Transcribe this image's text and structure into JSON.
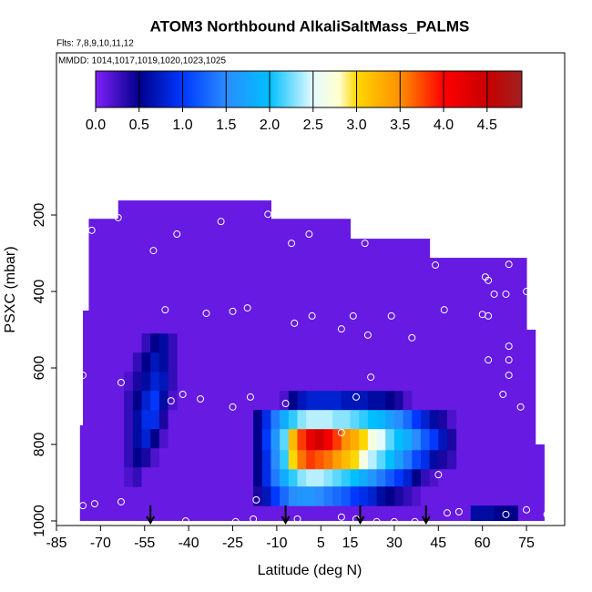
{
  "chart_data": {
    "type": "heatmap",
    "title": "ATOM3 Northbound AlkaliSaltMass_PALMS",
    "subtitle": "Flts: 7,8,9,10,11,12",
    "annotation": "MMDD: 1014,1017,1019,1020,1023,1025",
    "x_label": "Latitude (deg N)",
    "y_label": "PSXC (mbar)",
    "xlim": [
      -85,
      88
    ],
    "xticks": [
      -85,
      -70,
      -55,
      -40,
      -25,
      -10,
      5,
      15,
      30,
      45,
      60,
      75
    ],
    "ylim": [
      1012,
      -224
    ],
    "yticks": [
      200,
      400,
      600,
      800,
      1000
    ],
    "colorscale": [
      [
        0,
        "#8020f8"
      ],
      [
        0.5,
        "#00008b"
      ],
      [
        1.0,
        "#0038ff"
      ],
      [
        1.5,
        "#2a8cff"
      ],
      [
        2.0,
        "#00bfff"
      ],
      [
        2.5,
        "#e6fbff"
      ],
      [
        2.8,
        "#ffffd0"
      ],
      [
        3.0,
        "#ffd700"
      ],
      [
        3.5,
        "#ff9000"
      ],
      [
        4.0,
        "#ff0000"
      ],
      [
        4.5,
        "#c80000"
      ],
      [
        4.9,
        "#a02020"
      ]
    ],
    "colorbar": {
      "range": [
        0,
        4.9
      ],
      "ticks": [
        {
          "value": 0,
          "label": "0.0"
        },
        0.5,
        {
          "value": 1,
          "label": "1.0"
        },
        1.5,
        {
          "value": 2,
          "label": "2.0"
        },
        2.5,
        {
          "value": 3,
          "label": "3.0"
        },
        3.5,
        {
          "value": 4,
          "label": "4.0"
        },
        4.5
      ]
    },
    "blocks": [
      {
        "lat": [
          -77,
          -76
        ],
        "p": [
          750,
          1000
        ],
        "value": 0.1
      },
      {
        "lat": [
          -76,
          -74
        ],
        "p": [
          450,
          1000
        ],
        "value": 0.1
      },
      {
        "lat": [
          -74,
          -64
        ],
        "p": [
          210,
          1000
        ],
        "value": 0.1
      },
      {
        "lat": [
          -64,
          -12
        ],
        "p": [
          162,
          1000
        ],
        "value": 0.1
      },
      {
        "lat": [
          -12,
          15
        ],
        "p": [
          210,
          1000
        ],
        "value": 0.1
      },
      {
        "lat": [
          15,
          42
        ],
        "p": [
          262,
          1000
        ],
        "value": 0.1
      },
      {
        "lat": [
          42,
          75
        ],
        "p": [
          312,
          1000
        ],
        "value": 0.1
      },
      {
        "lat": [
          75,
          78
        ],
        "p": [
          500,
          1000
        ],
        "value": 0.1
      },
      {
        "lat": [
          78,
          81
        ],
        "p": [
          800,
          1000
        ],
        "value": 0.1
      },
      {
        "lat": [
          56,
          64
        ],
        "p": [
          960,
          1000
        ],
        "value": 0.6
      },
      {
        "lat": [
          64,
          72
        ],
        "p": [
          960,
          1000
        ],
        "value": 0.5
      }
    ],
    "grids": [
      {
        "lat_edges": [
          -62,
          -59,
          -56,
          -53,
          -50,
          -47,
          -44
        ],
        "p_edges": [
          510,
          560,
          610,
          660,
          710,
          760,
          810,
          860,
          910
        ],
        "values": [
          [
            0.1,
            0.1,
            0.3,
            0.5,
            0.6,
            0.3
          ],
          [
            0.1,
            0.3,
            0.5,
            0.7,
            0.6,
            0.3
          ],
          [
            0.2,
            0.4,
            0.6,
            0.8,
            0.7,
            0.3
          ],
          [
            0.3,
            0.5,
            0.8,
            1.0,
            0.6,
            0.2
          ],
          [
            0.3,
            0.6,
            0.9,
            0.9,
            0.4,
            0.1
          ],
          [
            0.3,
            0.6,
            0.8,
            0.5,
            0.2,
            0.1
          ],
          [
            0.3,
            0.5,
            0.4,
            0.2,
            0.1,
            0.1
          ],
          [
            0.2,
            0.3,
            0.1,
            0.1,
            0.1,
            0.1
          ]
        ]
      },
      {
        "lat_edges": [
          -18,
          -15,
          -12,
          -9,
          -6,
          -3,
          0,
          3,
          6,
          9,
          12,
          15,
          18,
          21,
          24,
          27,
          30,
          33,
          36,
          39,
          42,
          45,
          48,
          51
        ],
        "p_edges": [
          660,
          710,
          760,
          815,
          865,
          910,
          960
        ],
        "values": [
          [
            0.1,
            0.1,
            0.1,
            0.2,
            0.5,
            0.7,
            0.8,
            0.8,
            0.8,
            0.8,
            0.7,
            0.7,
            0.7,
            0.6,
            0.6,
            0.5,
            0.4,
            0.2,
            0.1,
            0.1,
            0.1,
            0.1,
            0.1
          ],
          [
            0.5,
            0.9,
            1.4,
            1.8,
            2.1,
            2.3,
            2.4,
            2.4,
            2.4,
            2.3,
            2.3,
            2.2,
            2.1,
            2.0,
            1.9,
            1.7,
            1.5,
            1.3,
            1.0,
            0.8,
            0.6,
            0.4,
            0.2
          ],
          [
            0.5,
            1.0,
            1.6,
            2.2,
            3.2,
            3.8,
            4.2,
            4.4,
            4.1,
            3.8,
            3.5,
            3.3,
            3.0,
            2.7,
            2.5,
            2.2,
            2.0,
            1.8,
            1.5,
            1.2,
            1.0,
            0.7,
            0.4
          ],
          [
            0.5,
            0.9,
            1.5,
            2.1,
            3.0,
            3.6,
            3.8,
            3.7,
            3.6,
            3.4,
            3.2,
            3.0,
            2.7,
            2.4,
            2.2,
            2.0,
            1.7,
            1.4,
            1.1,
            0.9,
            0.6,
            0.4,
            0.3
          ],
          [
            0.5,
            0.9,
            1.4,
            1.8,
            2.1,
            2.3,
            2.4,
            2.4,
            2.3,
            2.2,
            2.1,
            2.0,
            1.8,
            1.6,
            1.4,
            1.2,
            1.0,
            0.8,
            0.5,
            0.3,
            0.2,
            0.1,
            0.1
          ],
          [
            0.4,
            0.7,
            1.0,
            1.3,
            1.5,
            1.6,
            1.6,
            1.5,
            1.4,
            1.3,
            1.2,
            1.0,
            0.9,
            0.8,
            0.6,
            0.5,
            0.4,
            0.3,
            0.2,
            0.1,
            0.1,
            0.1,
            0.1
          ]
        ]
      }
    ],
    "points": {
      "lat": [
        -64,
        -73,
        -29,
        -13,
        -44,
        -52,
        -5,
        1,
        20,
        44,
        61,
        62,
        69,
        64,
        68,
        75,
        -48,
        -34,
        -25,
        -20,
        -4,
        2,
        16,
        29,
        12,
        21,
        36,
        47,
        60,
        62,
        69,
        62,
        69,
        69,
        22,
        -76,
        -63,
        -42,
        -46,
        -36,
        -25,
        -19,
        -7,
        17,
        67,
        73,
        12,
        45,
        -76,
        -72,
        -63,
        -17,
        -41,
        -35,
        -24,
        -18,
        -3,
        12,
        17,
        24,
        30,
        37,
        48,
        52,
        68,
        75,
        82
      ],
      "p": [
        207,
        240,
        217,
        198,
        250,
        293,
        274,
        250,
        274,
        331,
        362,
        371,
        329,
        407,
        407,
        400,
        448,
        457,
        452,
        443,
        483,
        464,
        464,
        464,
        498,
        514,
        521,
        448,
        460,
        464,
        543,
        579,
        579,
        619,
        624,
        619,
        638,
        669,
        686,
        681,
        702,
        676,
        693,
        676,
        669,
        702,
        769,
        879,
        960,
        955,
        950,
        945,
        1000,
        1010,
        1002,
        995,
        995,
        990,
        995,
        1002,
        1002,
        1002,
        979,
        976,
        983,
        971,
        983
      ]
    },
    "arrows_lat": [
      -53,
      -7,
      18.4,
      40.8
    ]
  }
}
